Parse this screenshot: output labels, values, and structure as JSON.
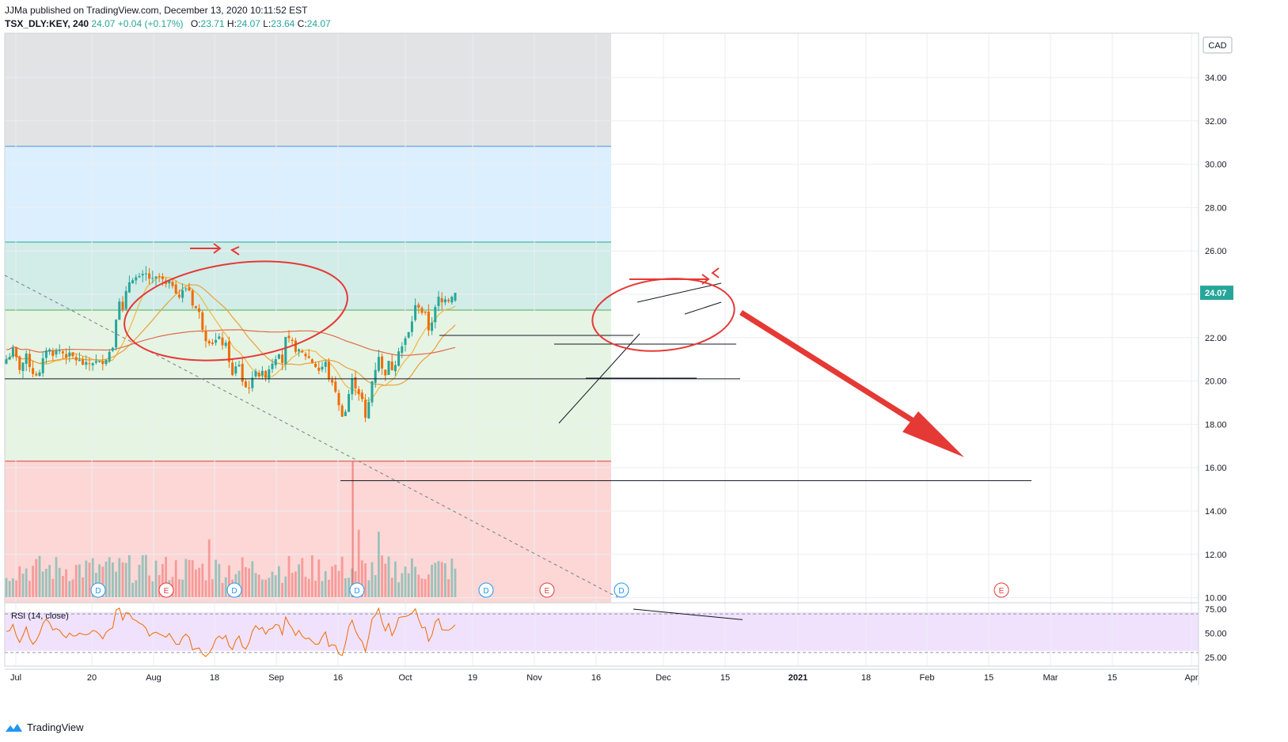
{
  "header": {
    "published": "JJMa published on TradingView.com, December 13, 2020 10:11:52 EST",
    "symbol": "TSX_DLY:KEY, 240",
    "last": "24.07",
    "change": "+0.04 (+0.17%)",
    "ohlc": {
      "o_label": "O:",
      "o": "23.71",
      "h_label": "H:",
      "h": "24.07",
      "l_label": "L:",
      "l": "23.64",
      "c_label": "C:",
      "c": "24.07"
    }
  },
  "currency": "CAD",
  "footer": {
    "brand": "TradingView"
  },
  "rsi_label": "RSI (14, close)",
  "colors": {
    "up": "#26a69a",
    "down": "#ef6c00",
    "annotation": "#e53935",
    "fib_blue": "#dcefff",
    "fib_teal": "#d2ece8",
    "fib_green": "#e6f4e4",
    "fib_red": "#fcd7d6",
    "fib_gray": "#e2e3e5",
    "rsi_band": "#f0e2fd"
  },
  "chart_data": [
    {
      "type": "candlestick",
      "price_axis_labels": [
        "34.00",
        "32.00",
        "30.00",
        "28.00",
        "26.00",
        "24.00",
        "22.00",
        "20.00",
        "18.00",
        "16.00",
        "14.00",
        "12.00",
        "10.00"
      ],
      "last_price_label": "24.07",
      "ylim": [
        9.6,
        35.5
      ],
      "x_tick_labels": [
        "Jul",
        "20",
        "Aug",
        "18",
        "Sep",
        "16",
        "Oct",
        "19",
        "Nov",
        "16",
        "Dec",
        "15",
        "2021",
        "18",
        "Feb",
        "15",
        "Mar",
        "15",
        "Apr"
      ],
      "close_path": [
        [
          0,
          21.0
        ],
        [
          2,
          21.4
        ],
        [
          4,
          20.6
        ],
        [
          6,
          21.1
        ],
        [
          8,
          20.4
        ],
        [
          10,
          20.3
        ],
        [
          12,
          21.5
        ],
        [
          14,
          21.3
        ],
        [
          16,
          21.4
        ],
        [
          18,
          21.2
        ],
        [
          20,
          21.1
        ],
        [
          22,
          20.9
        ],
        [
          24,
          20.7
        ],
        [
          26,
          20.9
        ],
        [
          28,
          20.8
        ],
        [
          30,
          21.1
        ],
        [
          32,
          21.6
        ],
        [
          33,
          23.0
        ],
        [
          34,
          23.8
        ],
        [
          35,
          23.2
        ],
        [
          36,
          24.0
        ],
        [
          37,
          24.6
        ],
        [
          38,
          24.8
        ],
        [
          40,
          24.7
        ],
        [
          42,
          24.9
        ],
        [
          44,
          24.6
        ],
        [
          46,
          24.8
        ],
        [
          48,
          24.4
        ],
        [
          50,
          24.5
        ],
        [
          52,
          23.9
        ],
        [
          54,
          24.3
        ],
        [
          55,
          24.2
        ],
        [
          56,
          23.6
        ],
        [
          58,
          23.1
        ],
        [
          59,
          22.5
        ],
        [
          60,
          22.0
        ],
        [
          62,
          21.8
        ],
        [
          64,
          21.9
        ],
        [
          66,
          21.6
        ],
        [
          67,
          21.0
        ],
        [
          68,
          20.2
        ],
        [
          69,
          20.6
        ],
        [
          70,
          20.8
        ],
        [
          71,
          20.0
        ],
        [
          72,
          19.7
        ],
        [
          73,
          19.8
        ],
        [
          74,
          20.0
        ],
        [
          75,
          20.6
        ],
        [
          76,
          20.3
        ],
        [
          78,
          20.3
        ],
        [
          80,
          20.9
        ],
        [
          82,
          21.4
        ],
        [
          83,
          20.9
        ],
        [
          84,
          21.9
        ],
        [
          86,
          21.7
        ],
        [
          88,
          21.3
        ],
        [
          90,
          21.2
        ],
        [
          92,
          20.9
        ],
        [
          94,
          20.5
        ],
        [
          96,
          20.8
        ],
        [
          97,
          20.2
        ],
        [
          98,
          19.8
        ],
        [
          99,
          19.6
        ],
        [
          100,
          18.8
        ],
        [
          101,
          18.5
        ],
        [
          102,
          18.6
        ],
        [
          103,
          19.4
        ],
        [
          104,
          20.0
        ],
        [
          105,
          19.8
        ],
        [
          106,
          19.5
        ],
        [
          107,
          19.1
        ],
        [
          108,
          18.2
        ],
        [
          109,
          19.0
        ],
        [
          110,
          20.0
        ],
        [
          111,
          20.6
        ],
        [
          112,
          21.2
        ],
        [
          113,
          20.5
        ],
        [
          114,
          20.4
        ],
        [
          115,
          20.8
        ],
        [
          116,
          20.6
        ],
        [
          117,
          20.9
        ],
        [
          118,
          21.5
        ],
        [
          119,
          21.6
        ],
        [
          120,
          21.9
        ],
        [
          121,
          22.2
        ],
        [
          122,
          22.8
        ],
        [
          123,
          23.4
        ],
        [
          124,
          23.5
        ],
        [
          125,
          23.2
        ],
        [
          126,
          23.0
        ],
        [
          127,
          22.4
        ],
        [
          128,
          22.8
        ],
        [
          129,
          23.3
        ],
        [
          130,
          23.8
        ],
        [
          131,
          23.6
        ],
        [
          132,
          23.9
        ],
        [
          133,
          23.8
        ],
        [
          134,
          24.0
        ],
        [
          135,
          24.07
        ]
      ],
      "drawing_notes": {
        "horizontal_levels": [
          22.1,
          21.7,
          20.1,
          15.4
        ],
        "projection_target": 16.5
      }
    },
    {
      "type": "line",
      "title": "RSI (14, close)",
      "axis_labels": [
        "75.00",
        "50.00",
        "25.00"
      ],
      "ylim": [
        15,
        82
      ],
      "bands": [
        30,
        70
      ]
    }
  ]
}
